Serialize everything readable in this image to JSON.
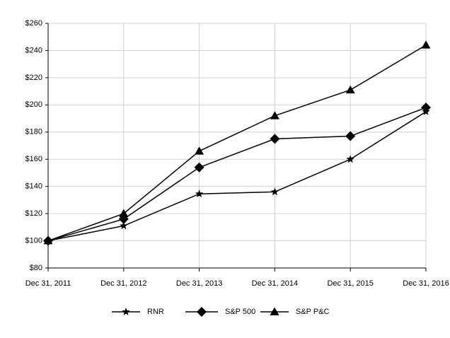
{
  "chart_data": {
    "type": "line",
    "categories": [
      "Dec 31, 2011",
      "Dec 31, 2012",
      "Dec 31, 2013",
      "Dec 31, 2014",
      "Dec 31, 2015",
      "Dec 31, 2016"
    ],
    "series": [
      {
        "name": "RNR",
        "color": "#000000",
        "marker": "star",
        "values": [
          100,
          111,
          134.5,
          136,
          160,
          195
        ]
      },
      {
        "name": "S&P 500",
        "color": "#000000",
        "marker": "diamond",
        "values": [
          100,
          116,
          154,
          175,
          177,
          198
        ]
      },
      {
        "name": "S&P P&C",
        "color": "#000000",
        "marker": "triangle",
        "values": [
          100,
          120,
          166,
          192,
          211,
          244
        ]
      }
    ],
    "ylim": [
      80,
      260
    ],
    "yticks": [
      {
        "value": 80,
        "label": "$80"
      },
      {
        "value": 100,
        "label": "$100"
      },
      {
        "value": 120,
        "label": "$120"
      },
      {
        "value": 140,
        "label": "$140"
      },
      {
        "value": 160,
        "label": "$160"
      },
      {
        "value": 180,
        "label": "$180"
      },
      {
        "value": 200,
        "label": "$200"
      },
      {
        "value": 220,
        "label": "$220"
      },
      {
        "value": 240,
        "label": "$240"
      },
      {
        "value": 260,
        "label": "$260"
      }
    ],
    "grid": true,
    "legend": "bottom"
  }
}
